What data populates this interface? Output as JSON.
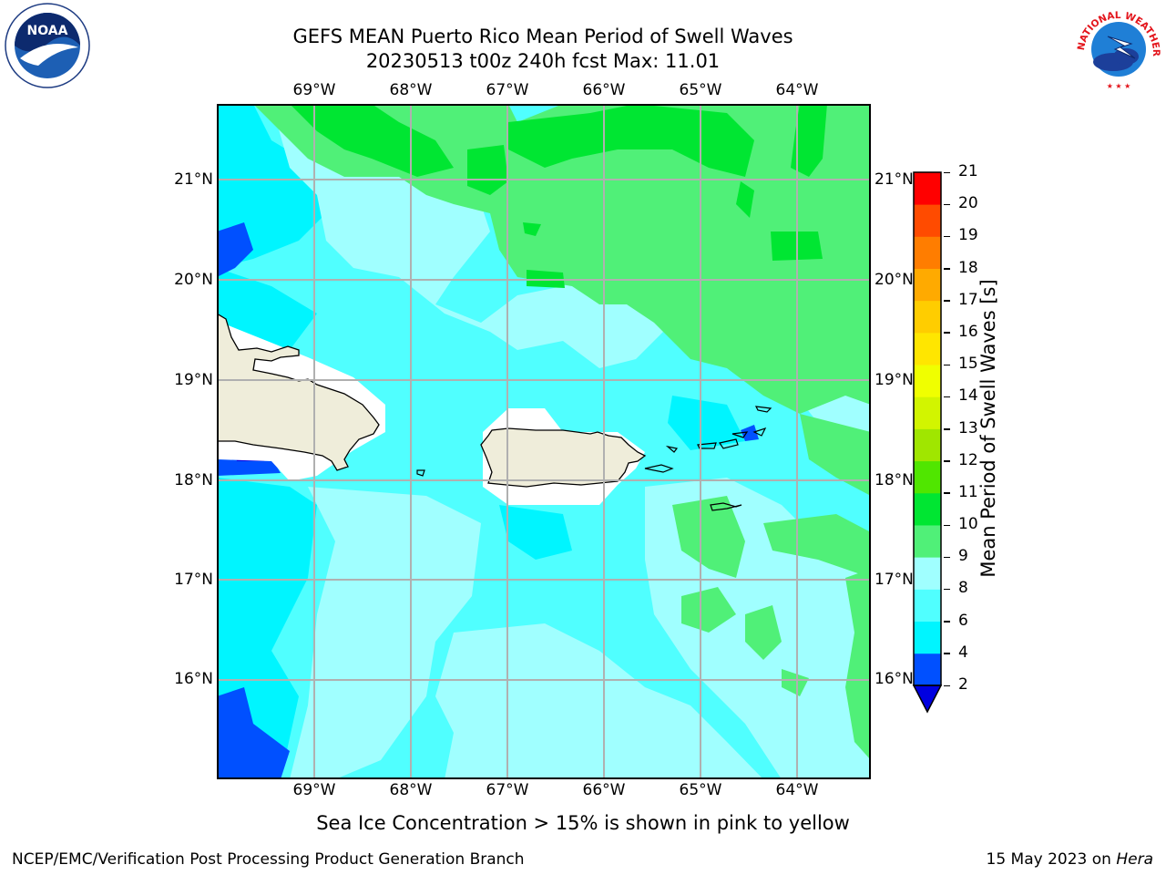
{
  "header": {
    "title_line1": "GEFS MEAN Puerto Rico Mean Period of Swell Waves",
    "title_line2": "20230513 t00z 240h fcst   Max: 11.01"
  },
  "logos": {
    "noaa_text": "NOAA",
    "noaa_ring_text": "NATIONAL OCEANIC AND ATMOSPHERIC ADMINISTRATION · U.S. DEPARTMENT OF COMMERCE",
    "nws_ring_text": "NATIONAL WEATHER SERVICE"
  },
  "map": {
    "lon_labels": [
      "69°W",
      "68°W",
      "67°W",
      "66°W",
      "65°W",
      "64°W"
    ],
    "lat_labels": [
      "21°N",
      "20°N",
      "19°N",
      "18°N",
      "17°N",
      "16°N"
    ],
    "lon_range": [
      -70.0,
      -63.25
    ],
    "lat_range": [
      15.0,
      21.75
    ],
    "projection_note": "",
    "grid": true,
    "land_color": "#efedda",
    "islands": [
      "Hispaniola",
      "Puerto Rico",
      "Virgin Islands",
      "St. Croix",
      "Mona Island"
    ]
  },
  "colorbar": {
    "label": "Mean Period of Swell Waves [s]",
    "ticks": [
      "21",
      "20",
      "19",
      "18",
      "17",
      "16",
      "15",
      "14",
      "13",
      "12",
      "11",
      "10",
      "9",
      "8",
      "6",
      "4",
      "2"
    ],
    "bounds": [
      2,
      4,
      6,
      8,
      9,
      10,
      11,
      12,
      13,
      14,
      15,
      16,
      17,
      18,
      19,
      20,
      21
    ],
    "colors": [
      "#0050ff",
      "#00f5ff",
      "#50ffff",
      "#a0ffff",
      "#50f078",
      "#00e632",
      "#50e600",
      "#a0e600",
      "#d2f500",
      "#f0ff00",
      "#ffe600",
      "#ffcd00",
      "#ffaa00",
      "#ff7d00",
      "#ff4b00",
      "#ff0000"
    ],
    "under_color": "#0000e0"
  },
  "footer": {
    "note": "Sea Ice Concentration > 15% is shown in pink to yellow",
    "left": "NCEP/EMC/Verification Post Processing Product Generation Branch",
    "right_prefix": "15 May 2023 on ",
    "right_machine": "Hera"
  }
}
